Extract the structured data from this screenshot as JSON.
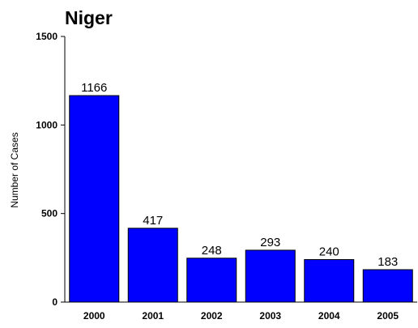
{
  "chart_data": {
    "type": "bar",
    "title": "Niger",
    "xlabel": "",
    "ylabel": "Number of Cases",
    "categories": [
      "2000",
      "2001",
      "2002",
      "2003",
      "2004",
      "2005"
    ],
    "values": [
      1166,
      417,
      248,
      293,
      240,
      183
    ],
    "data_labels": [
      "1166",
      "417",
      "248",
      "293",
      "240",
      "183"
    ],
    "ylim": [
      0,
      1500
    ],
    "yticks": [
      "0",
      "500",
      "1000",
      "1500"
    ],
    "ytick_values": [
      0,
      500,
      1000,
      1500
    ],
    "grid": false,
    "legend": "none",
    "bar_color": "#0000FF",
    "bar_edge_color": "#000000"
  }
}
